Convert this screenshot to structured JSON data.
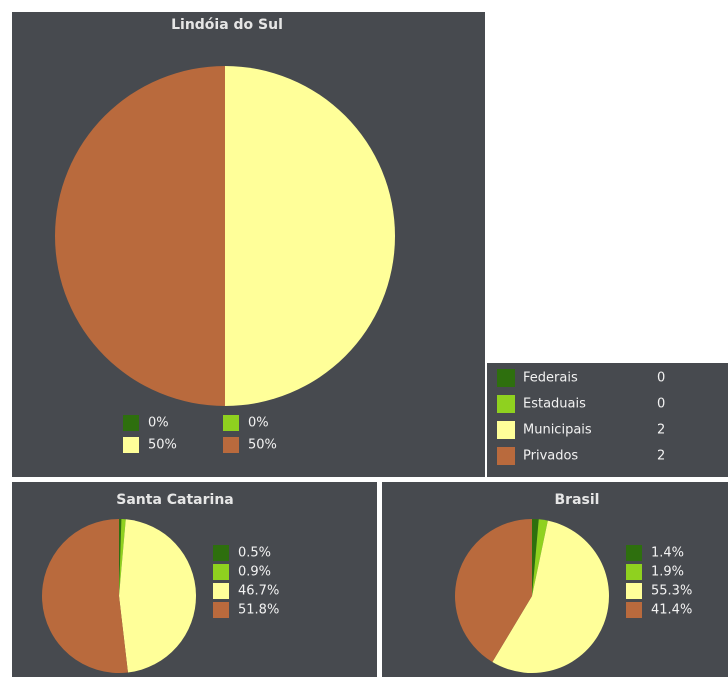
{
  "chart_data": [
    {
      "type": "pie",
      "title": "Lindóia do Sul",
      "values": [
        0,
        0,
        50,
        50
      ],
      "value_labels": [
        "0%",
        "0%",
        "50%",
        "50%"
      ],
      "colors": [
        "#2e6f0e",
        "#8fd11f",
        "#ffff99",
        "#b96a3d"
      ]
    },
    {
      "type": "pie",
      "title": "Santa Catarina",
      "values": [
        0.5,
        0.9,
        46.7,
        51.8
      ],
      "value_labels": [
        "0.5%",
        "0.9%",
        "46.7%",
        "51.8%"
      ],
      "colors": [
        "#2e6f0e",
        "#8fd11f",
        "#ffff99",
        "#b96a3d"
      ]
    },
    {
      "type": "pie",
      "title": "Brasil",
      "values": [
        1.4,
        1.9,
        55.3,
        41.4
      ],
      "value_labels": [
        "1.4%",
        "1.9%",
        "55.3%",
        "41.4%"
      ],
      "colors": [
        "#2e6f0e",
        "#8fd11f",
        "#ffff99",
        "#b96a3d"
      ]
    }
  ],
  "legend": {
    "items": [
      {
        "name": "Federais",
        "value": 0
      },
      {
        "name": "Estaduais",
        "value": 0
      },
      {
        "name": "Municipais",
        "value": 2
      },
      {
        "name": "Privados",
        "value": 2
      }
    ],
    "colors": [
      "#2e6f0e",
      "#8fd11f",
      "#ffff99",
      "#b96a3d"
    ]
  }
}
